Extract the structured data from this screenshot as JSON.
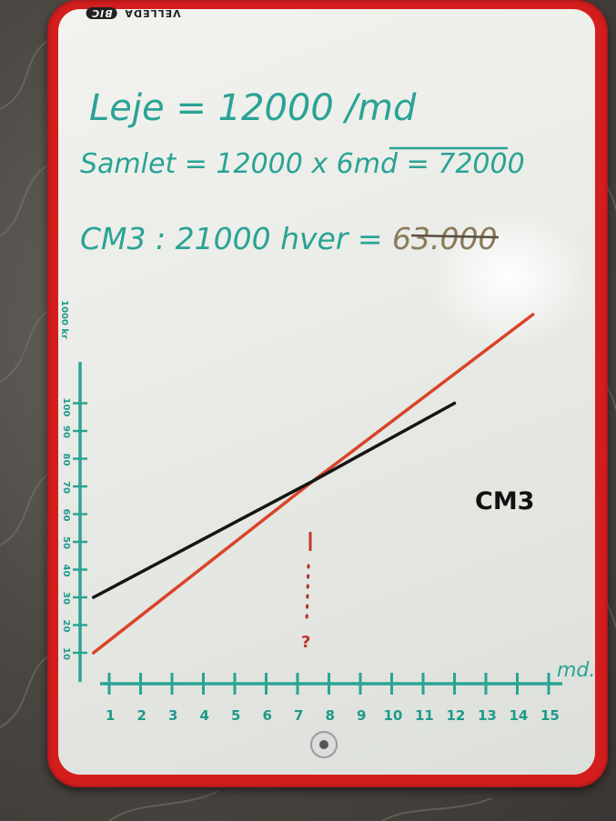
{
  "board": {
    "brand": "BIC",
    "brand_sub": "VELLEDA",
    "line_rent": "Leje = 12000 /md",
    "line_total_prefix": "Samlet = 12000 x 6md = ",
    "line_total_value": "72000",
    "line_cm3_prefix": "CM3 : 21000 hver = ",
    "line_cm3_value": "63.000"
  },
  "chart": {
    "y_unit": "1000 kr",
    "x_unit": "md.",
    "question_mark": "?",
    "series_label_cm3": "CM3"
  },
  "chart_data": {
    "type": "line",
    "x": [
      1,
      2,
      3,
      4,
      5,
      6,
      7,
      8,
      9,
      10,
      11,
      12,
      13,
      14,
      15
    ],
    "x_tick_labels": [
      "1",
      "2",
      "3",
      "4",
      "5",
      "6",
      "7",
      "8",
      "9",
      "10",
      "11",
      "12",
      "13",
      "14",
      "15"
    ],
    "y_tick_labels": [
      "10",
      "20",
      "30",
      "40",
      "50",
      "60",
      "70",
      "80",
      "90",
      "100"
    ],
    "xlabel": "md.",
    "ylabel": "1000 kr",
    "series": [
      {
        "name": "",
        "color": "#d9432a",
        "points": [
          [
            0.5,
            10
          ],
          [
            7.5,
            72
          ],
          [
            14.5,
            132
          ]
        ]
      },
      {
        "name": "CM3",
        "color": "#151515",
        "points": [
          [
            0.5,
            30
          ],
          [
            7.5,
            72
          ],
          [
            12,
            100
          ]
        ]
      }
    ],
    "intersection_x": 7.5,
    "grid": false
  }
}
